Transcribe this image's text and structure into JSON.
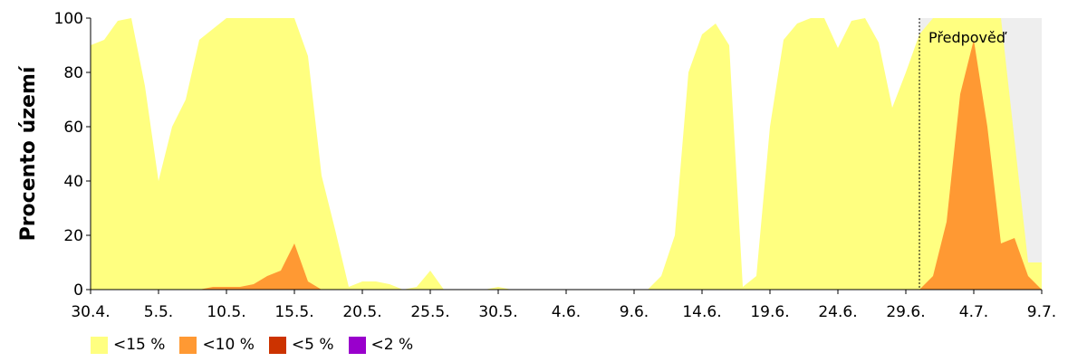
{
  "chart_data": {
    "type": "area",
    "title": "",
    "xlabel": "",
    "ylabel": "Procento území",
    "ylim": [
      0,
      100
    ],
    "y_ticks": [
      0,
      20,
      40,
      60,
      80,
      100
    ],
    "x_ticks": [
      "30.4.",
      "5.5.",
      "10.5.",
      "15.5.",
      "20.5.",
      "25.5.",
      "30.5.",
      "4.6.",
      "9.6.",
      "14.6.",
      "19.6.",
      "24.6.",
      "29.6.",
      "4.7.",
      "9.7."
    ],
    "x_start": "2020-04-30",
    "x_end": "2020-07-09",
    "forecast": {
      "label": "Předpověď",
      "start": "2020-06-30"
    },
    "grid": false,
    "legend_position": "bottom-left",
    "series": [
      {
        "name": "<15 %",
        "color": "#FFFF80",
        "points": [
          [
            "2020-04-30",
            90
          ],
          [
            "2020-05-01",
            92
          ],
          [
            "2020-05-02",
            99
          ],
          [
            "2020-05-03",
            100
          ],
          [
            "2020-05-04",
            75
          ],
          [
            "2020-05-05",
            40
          ],
          [
            "2020-05-06",
            60
          ],
          [
            "2020-05-07",
            70
          ],
          [
            "2020-05-08",
            92
          ],
          [
            "2020-05-09",
            96
          ],
          [
            "2020-05-10",
            100
          ],
          [
            "2020-05-11",
            100
          ],
          [
            "2020-05-12",
            100
          ],
          [
            "2020-05-13",
            100
          ],
          [
            "2020-05-14",
            100
          ],
          [
            "2020-05-15",
            100
          ],
          [
            "2020-05-16",
            86
          ],
          [
            "2020-05-17",
            42
          ],
          [
            "2020-05-18",
            22
          ],
          [
            "2020-05-19",
            1
          ],
          [
            "2020-05-20",
            3
          ],
          [
            "2020-05-21",
            3
          ],
          [
            "2020-05-22",
            2
          ],
          [
            "2020-05-23",
            0
          ],
          [
            "2020-05-24",
            1
          ],
          [
            "2020-05-25",
            7
          ],
          [
            "2020-05-26",
            0
          ],
          [
            "2020-05-27",
            0
          ],
          [
            "2020-05-28",
            0
          ],
          [
            "2020-05-29",
            0
          ],
          [
            "2020-05-30",
            1
          ],
          [
            "2020-05-31",
            0
          ],
          [
            "2020-06-01",
            0
          ],
          [
            "2020-06-02",
            0
          ],
          [
            "2020-06-03",
            0
          ],
          [
            "2020-06-04",
            0
          ],
          [
            "2020-06-05",
            0
          ],
          [
            "2020-06-06",
            0
          ],
          [
            "2020-06-07",
            0
          ],
          [
            "2020-06-08",
            0
          ],
          [
            "2020-06-09",
            0
          ],
          [
            "2020-06-10",
            0
          ],
          [
            "2020-06-11",
            5
          ],
          [
            "2020-06-12",
            20
          ],
          [
            "2020-06-13",
            80
          ],
          [
            "2020-06-14",
            94
          ],
          [
            "2020-06-15",
            98
          ],
          [
            "2020-06-16",
            90
          ],
          [
            "2020-06-17",
            1
          ],
          [
            "2020-06-18",
            5
          ],
          [
            "2020-06-19",
            60
          ],
          [
            "2020-06-20",
            92
          ],
          [
            "2020-06-21",
            98
          ],
          [
            "2020-06-22",
            100
          ],
          [
            "2020-06-23",
            100
          ],
          [
            "2020-06-24",
            89
          ],
          [
            "2020-06-25",
            99
          ],
          [
            "2020-06-26",
            100
          ],
          [
            "2020-06-27",
            91
          ],
          [
            "2020-06-28",
            67
          ],
          [
            "2020-06-29",
            80
          ],
          [
            "2020-06-30",
            94
          ],
          [
            "2020-07-01",
            100
          ],
          [
            "2020-07-02",
            100
          ],
          [
            "2020-07-03",
            100
          ],
          [
            "2020-07-04",
            100
          ],
          [
            "2020-07-05",
            100
          ],
          [
            "2020-07-06",
            100
          ],
          [
            "2020-07-07",
            55
          ],
          [
            "2020-07-08",
            10
          ],
          [
            "2020-07-09",
            10
          ]
        ]
      },
      {
        "name": "<10 %",
        "color": "#FF9933",
        "points": [
          [
            "2020-04-30",
            0
          ],
          [
            "2020-05-06",
            0
          ],
          [
            "2020-05-08",
            0
          ],
          [
            "2020-05-09",
            1
          ],
          [
            "2020-05-10",
            1
          ],
          [
            "2020-05-11",
            1
          ],
          [
            "2020-05-12",
            2
          ],
          [
            "2020-05-13",
            5
          ],
          [
            "2020-05-14",
            7
          ],
          [
            "2020-05-15",
            17
          ],
          [
            "2020-05-16",
            3
          ],
          [
            "2020-05-17",
            0
          ],
          [
            "2020-06-30",
            0
          ],
          [
            "2020-07-01",
            5
          ],
          [
            "2020-07-02",
            25
          ],
          [
            "2020-07-03",
            72
          ],
          [
            "2020-07-04",
            92
          ],
          [
            "2020-07-05",
            60
          ],
          [
            "2020-07-06",
            17
          ],
          [
            "2020-07-07",
            19
          ],
          [
            "2020-07-08",
            5
          ],
          [
            "2020-07-09",
            0
          ]
        ]
      },
      {
        "name": "<5 %",
        "color": "#CC3300",
        "points": [
          [
            "2020-04-30",
            0
          ],
          [
            "2020-07-09",
            0
          ]
        ]
      },
      {
        "name": "<2 %",
        "color": "#9900CC",
        "points": [
          [
            "2020-04-30",
            0
          ],
          [
            "2020-07-09",
            0
          ]
        ]
      }
    ]
  }
}
